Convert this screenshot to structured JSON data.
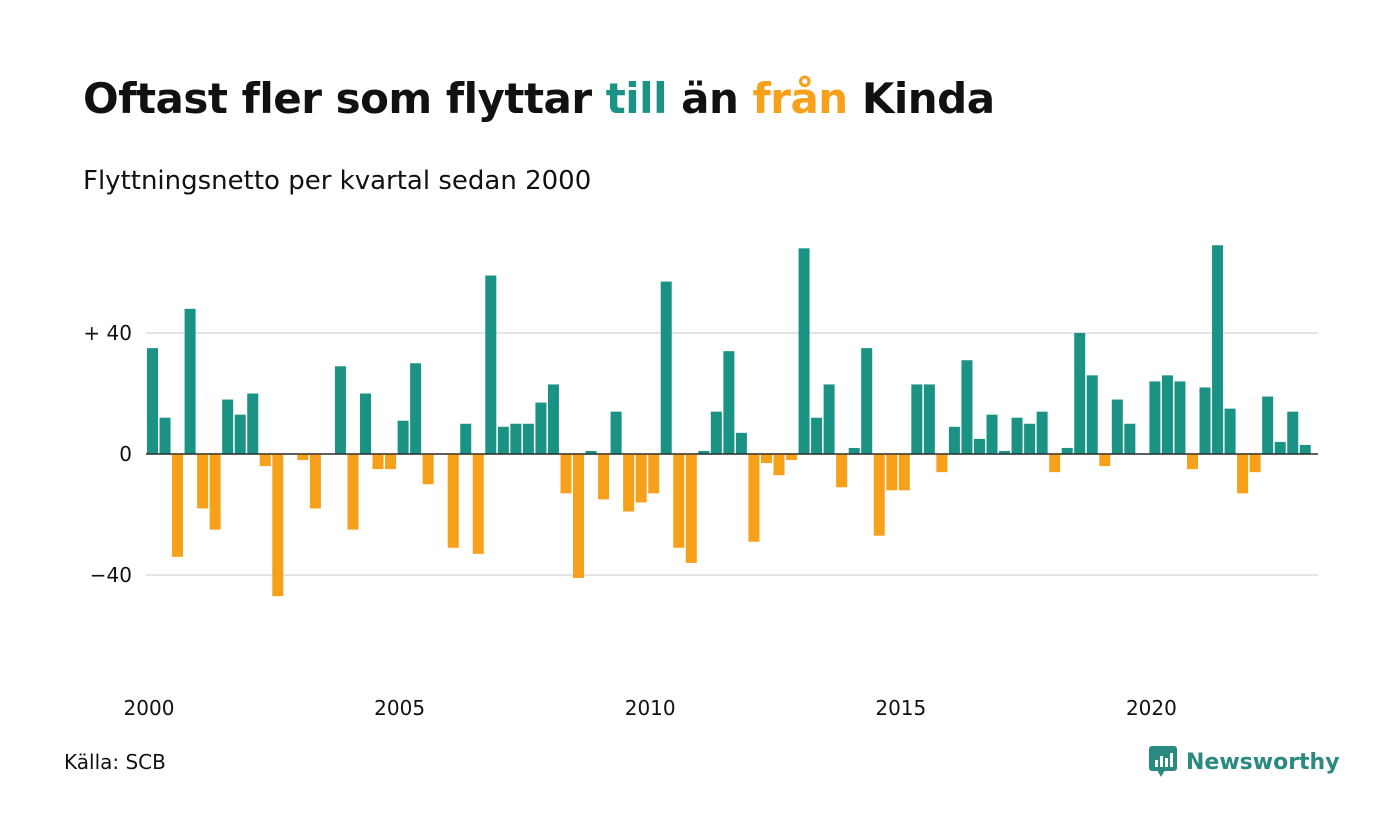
{
  "title": {
    "part1": "Oftast fler som flyttar ",
    "part2": "till",
    "part3": " än ",
    "part4": "från",
    "part5": " Kinda"
  },
  "subtitle": "Flyttningsnetto per kvartal sedan 2000",
  "source": "Källa: SCB",
  "logo": {
    "text": "Newsworthy",
    "icon": "newsworthy-chart-bubble-icon"
  },
  "colors": {
    "positive": "#1a9385",
    "negative": "#f7a11a",
    "grid": "#dcdcdc",
    "logo": "#2a8a80"
  },
  "chart_data": {
    "type": "bar",
    "title": "Oftast fler som flyttar till än från Kinda",
    "subtitle": "Flyttningsnetto per kvartal sedan 2000",
    "xlabel": "",
    "ylabel": "",
    "ylim": [
      -65,
      70
    ],
    "y_ticks": [
      {
        "value": 40,
        "label": "+ 40"
      },
      {
        "value": 0,
        "label": "0"
      },
      {
        "value": -40,
        "label": "−40"
      }
    ],
    "x_ticks": [
      "2000",
      "2005",
      "2010",
      "2015",
      "2020"
    ],
    "grid": true,
    "legend": "none",
    "categories": [
      "2000K1",
      "2000K2",
      "2000K3",
      "2000K4",
      "2001K1",
      "2001K2",
      "2001K3",
      "2001K4",
      "2002K1",
      "2002K2",
      "2002K3",
      "2002K4",
      "2003K1",
      "2003K2",
      "2003K3",
      "2003K4",
      "2004K1",
      "2004K2",
      "2004K3",
      "2004K4",
      "2005K1",
      "2005K2",
      "2005K3",
      "2005K4",
      "2006K1",
      "2006K2",
      "2006K3",
      "2006K4",
      "2007K1",
      "2007K2",
      "2007K3",
      "2007K4",
      "2008K1",
      "2008K2",
      "2008K3",
      "2008K4",
      "2009K1",
      "2009K2",
      "2009K3",
      "2009K4",
      "2010K1",
      "2010K2",
      "2010K3",
      "2010K4",
      "2011K1",
      "2011K2",
      "2011K3",
      "2011K4",
      "2012K1",
      "2012K2",
      "2012K3",
      "2012K4",
      "2013K1",
      "2013K2",
      "2013K3",
      "2013K4",
      "2014K1",
      "2014K2",
      "2014K3",
      "2014K4",
      "2015K1",
      "2015K2",
      "2015K3",
      "2015K4",
      "2016K1",
      "2016K2",
      "2016K3",
      "2016K4",
      "2017K1",
      "2017K2",
      "2017K3",
      "2017K4",
      "2018K1",
      "2018K2",
      "2018K3",
      "2018K4",
      "2019K1",
      "2019K2",
      "2019K3",
      "2019K4",
      "2020K1",
      "2020K2",
      "2020K3",
      "2020K4",
      "2021K1",
      "2021K2",
      "2021K3",
      "2021K4",
      "2022K1",
      "2022K2",
      "2022K3",
      "2022K4",
      "2023K1",
      "2023K2"
    ],
    "values": [
      35,
      12,
      -34,
      48,
      -18,
      -25,
      18,
      13,
      20,
      -4,
      -47,
      0,
      -2,
      -18,
      0,
      29,
      -25,
      20,
      -5,
      -5,
      11,
      30,
      -10,
      0,
      -31,
      10,
      -33,
      59,
      9,
      10,
      10,
      17,
      23,
      -13,
      -41,
      1,
      -15,
      14,
      -19,
      -16,
      -13,
      57,
      -31,
      -36,
      1,
      14,
      34,
      7,
      -29,
      -3,
      -7,
      -2,
      68,
      12,
      23,
      -11,
      2,
      35,
      -27,
      -12,
      -12,
      23,
      23,
      -6,
      9,
      31,
      5,
      13,
      1,
      12,
      10,
      14,
      -6,
      2,
      40,
      26,
      -4,
      18,
      10,
      0,
      24,
      26,
      24,
      -5,
      22,
      69,
      15,
      -13,
      -6,
      19,
      4,
      14,
      3,
      0
    ]
  }
}
